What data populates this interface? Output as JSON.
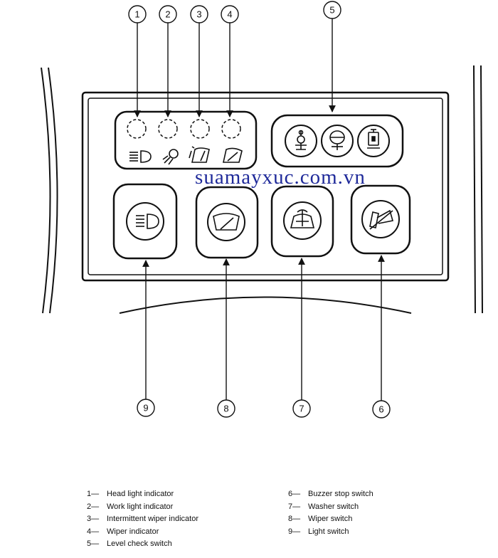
{
  "watermark": "suamayxuc.com.vn",
  "callouts": [
    "1",
    "2",
    "3",
    "4",
    "5",
    "6",
    "7",
    "8",
    "9"
  ],
  "legend": [
    {
      "num": "1—",
      "text": "Head light indicator"
    },
    {
      "num": "2—",
      "text": "Work light indicator"
    },
    {
      "num": "3—",
      "text": "Intermittent wiper indicator"
    },
    {
      "num": "4—",
      "text": "Wiper indicator"
    },
    {
      "num": "5—",
      "text": "Level check switch"
    },
    {
      "num": "6—",
      "text": "Buzzer stop switch"
    },
    {
      "num": "7—",
      "text": "Washer switch"
    },
    {
      "num": "8—",
      "text": "Wiper switch"
    },
    {
      "num": "9—",
      "text": "Light switch"
    }
  ]
}
